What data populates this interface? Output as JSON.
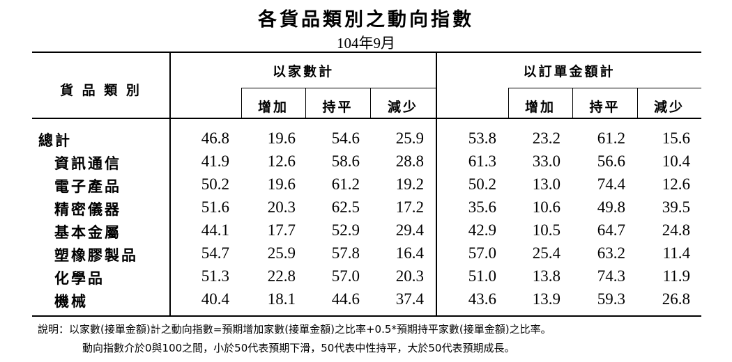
{
  "title": "各貨品類別之動向指數",
  "subtitle": "104年9月",
  "header": {
    "category": "貨 品 類 別",
    "group_count": "以家數計",
    "group_order": "以訂單金額計",
    "increase": "增加",
    "flat": "持平",
    "decrease": "減少"
  },
  "rows": [
    {
      "name": "總計",
      "v": [
        "46.8",
        "19.6",
        "54.6",
        "25.9",
        "53.8",
        "23.2",
        "61.2",
        "15.6"
      ]
    },
    {
      "name": "資訊通信",
      "v": [
        "41.9",
        "12.6",
        "58.6",
        "28.8",
        "61.3",
        "33.0",
        "56.6",
        "10.4"
      ]
    },
    {
      "name": "電子產品",
      "v": [
        "50.2",
        "19.6",
        "61.2",
        "19.2",
        "50.2",
        "13.0",
        "74.4",
        "12.6"
      ]
    },
    {
      "name": "精密儀器",
      "v": [
        "51.6",
        "20.3",
        "62.5",
        "17.2",
        "35.6",
        "10.6",
        "49.8",
        "39.5"
      ]
    },
    {
      "name": "基本金屬",
      "v": [
        "44.1",
        "17.7",
        "52.9",
        "29.4",
        "42.9",
        "10.5",
        "64.7",
        "24.8"
      ]
    },
    {
      "name": "塑橡膠製品",
      "v": [
        "54.7",
        "25.9",
        "57.8",
        "16.4",
        "57.0",
        "25.4",
        "63.2",
        "11.4"
      ]
    },
    {
      "name": "化學品",
      "v": [
        "51.3",
        "22.8",
        "57.0",
        "20.3",
        "51.0",
        "13.8",
        "74.3",
        "11.9"
      ]
    },
    {
      "name": "機械",
      "v": [
        "40.4",
        "18.1",
        "44.6",
        "37.4",
        "43.6",
        "13.9",
        "59.3",
        "26.8"
      ]
    }
  ],
  "notes": {
    "line1": "說明：以家數(接單金額)計之動向指數=預期增加家數(接單金額)之比率+0.5*預期持平家數(接單金額)之比率。",
    "line2": "動向指數介於0與100之間，小於50代表預期下滑，50代表中性持平，大於50代表預期成長。"
  }
}
